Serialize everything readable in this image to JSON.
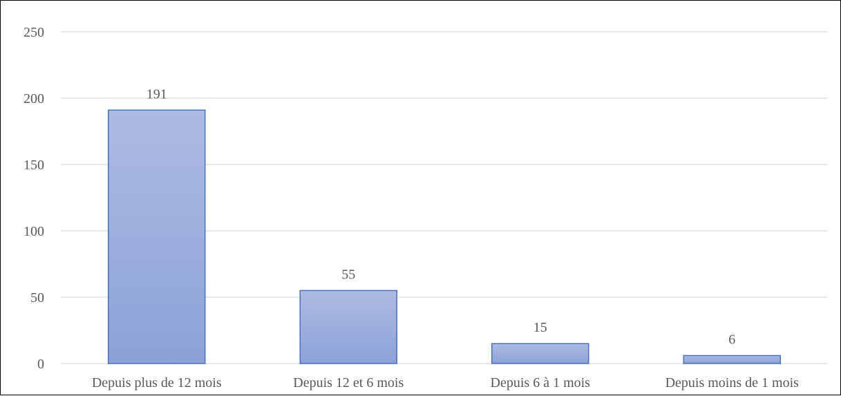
{
  "chart_data": {
    "type": "bar",
    "categories": [
      "Depuis plus de 12 mois",
      "Depuis 12 et 6 mois",
      "Depuis 6 à 1 mois",
      "Depuis moins de 1 mois"
    ],
    "values": [
      191,
      55,
      15,
      6
    ],
    "data_labels": [
      "191",
      "55",
      "15",
      "6"
    ],
    "title": "",
    "xlabel": "",
    "ylabel": "",
    "ylim": [
      0,
      250
    ],
    "y_ticks": [
      0,
      50,
      100,
      150,
      200,
      250
    ],
    "y_tick_labels": [
      "0",
      "50",
      "100",
      "150",
      "200",
      "250"
    ],
    "grid": true,
    "legend": "none",
    "colors": {
      "bar_top": "#adbbe2",
      "bar_bottom": "#8ba2d8",
      "bar_border": "#4472c4",
      "grid": "#d9d9d9",
      "text": "#595959",
      "frame": "#000000"
    }
  }
}
